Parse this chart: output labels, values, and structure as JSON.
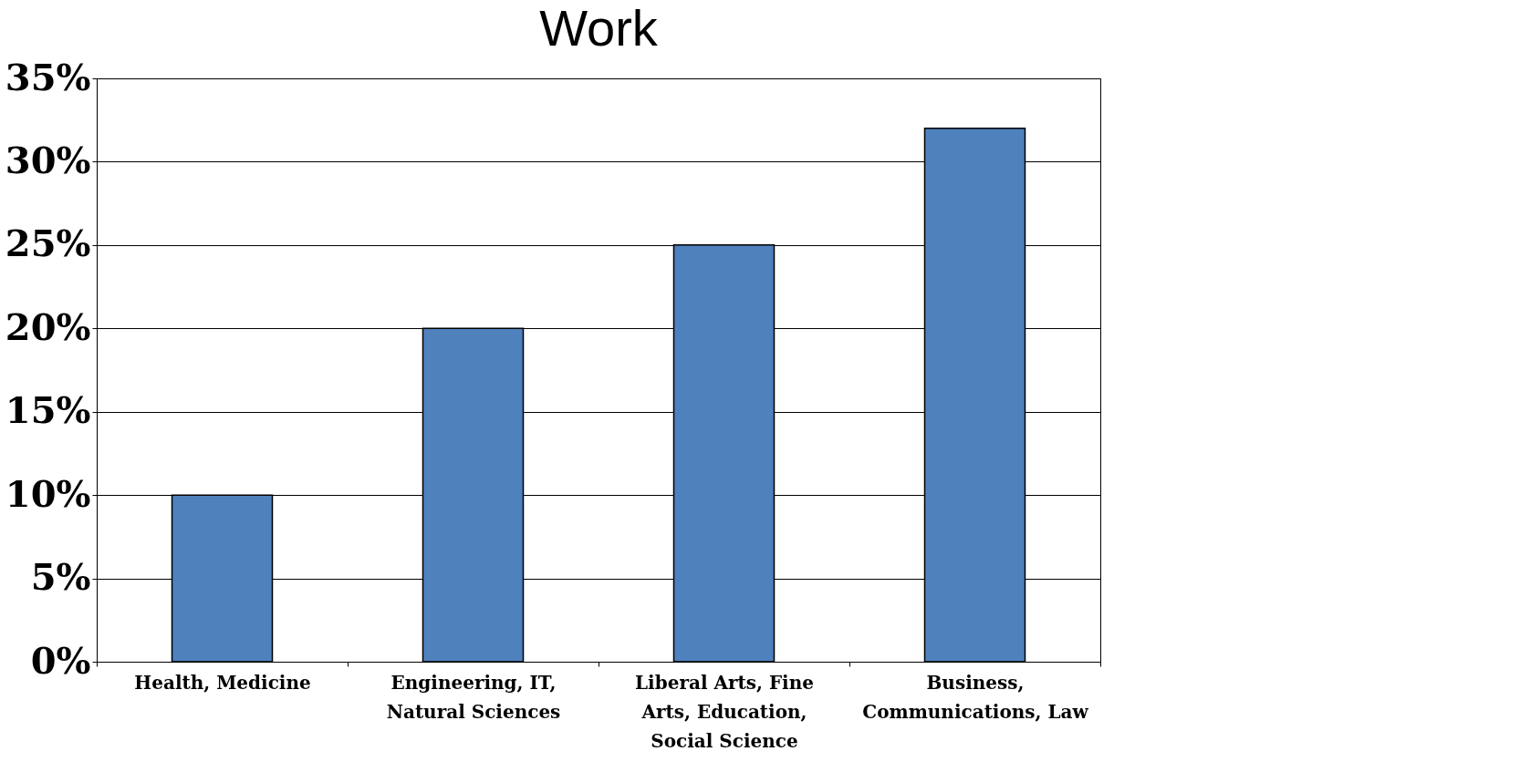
{
  "chart_data": {
    "type": "bar",
    "title": "Work",
    "categories": [
      "Health, Medicine",
      "Engineering, IT, Natural Sciences",
      "Liberal Arts, Fine Arts, Education, Social Science",
      "Business, Communications, Law"
    ],
    "values": [
      10,
      20,
      25,
      32
    ],
    "color": "#4f81bd",
    "ylim": [
      0,
      35
    ],
    "yticks": [
      {
        "value": 0,
        "label": "0%"
      },
      {
        "value": 5,
        "label": "5%"
      },
      {
        "value": 10,
        "label": "10%"
      },
      {
        "value": 15,
        "label": "15%"
      },
      {
        "value": 20,
        "label": "20%"
      },
      {
        "value": 25,
        "label": "25%"
      },
      {
        "value": 30,
        "label": "30%"
      },
      {
        "value": 35,
        "label": "35%"
      }
    ],
    "grid": "y"
  }
}
